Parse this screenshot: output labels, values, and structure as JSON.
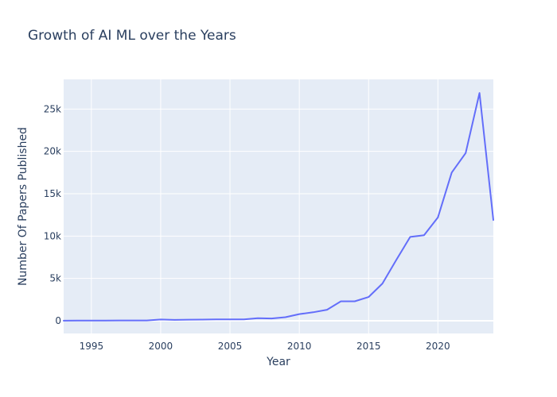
{
  "chart_data": {
    "type": "line",
    "title": "Growth of AI ML over the Years",
    "xlabel": "Year",
    "ylabel": "Number Of Papers Published",
    "xlim": [
      1993,
      2024
    ],
    "ylim": [
      -1500,
      28500
    ],
    "x_ticks": [
      1995,
      2000,
      2005,
      2010,
      2015,
      2020
    ],
    "x_tick_labels": [
      "1995",
      "2000",
      "2005",
      "2010",
      "2015",
      "2020"
    ],
    "y_ticks": [
      0,
      5000,
      10000,
      15000,
      20000,
      25000
    ],
    "y_tick_labels": [
      "0",
      "5k",
      "10k",
      "15k",
      "20k",
      "25k"
    ],
    "grid": true,
    "background_color": "#e5ecf6",
    "line_color": "#636efa",
    "x": [
      1993,
      1994,
      1995,
      1996,
      1997,
      1998,
      1999,
      2000,
      2001,
      2002,
      2003,
      2004,
      2005,
      2006,
      2007,
      2008,
      2009,
      2010,
      2011,
      2012,
      2013,
      2014,
      2015,
      2016,
      2017,
      2018,
      2019,
      2020,
      2021,
      2022,
      2023,
      2024
    ],
    "y": [
      10,
      20,
      30,
      30,
      40,
      40,
      40,
      150,
      100,
      130,
      140,
      160,
      170,
      170,
      300,
      270,
      420,
      790,
      1000,
      1300,
      2300,
      2300,
      2800,
      4400,
      7200,
      9900,
      10100,
      12200,
      17500,
      19800,
      26900,
      11900
    ]
  }
}
